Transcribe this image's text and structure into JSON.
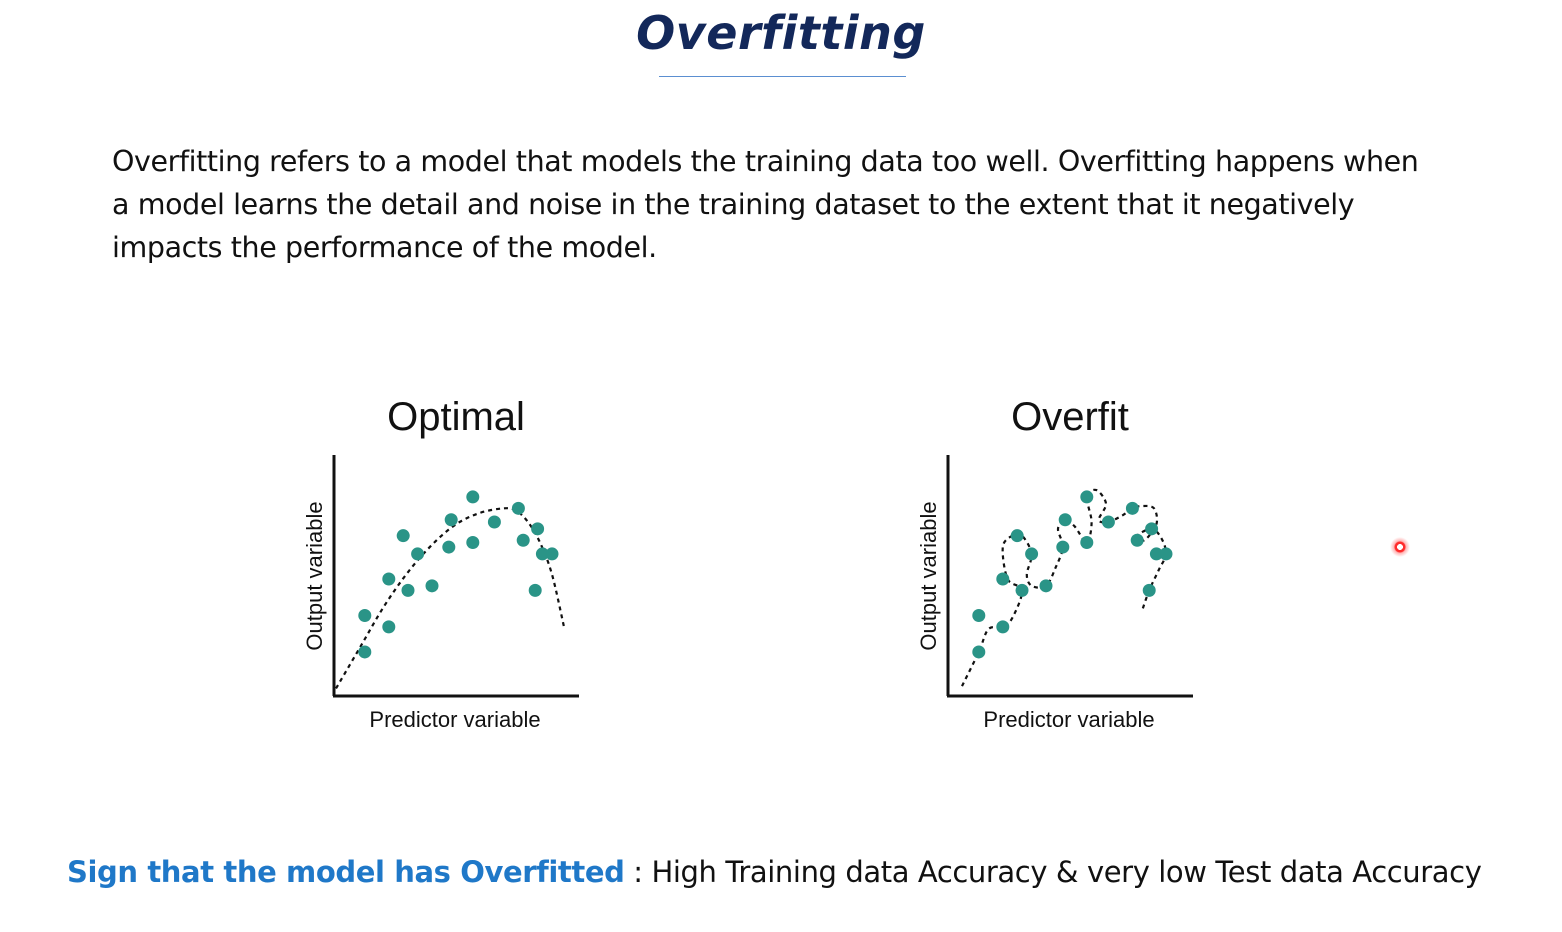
{
  "slide": {
    "title": "Overfitting",
    "body": "Overfitting refers to a model that models the training data too well. Overfitting happens when a model learns the detail and noise in the training dataset to the extent that it negatively impacts the performance of the model.",
    "footer_highlight": "Sign that the model has Overfitted",
    "footer_rest": " : High Training data Accuracy & very low Test data Accuracy"
  },
  "colors": {
    "title": "#13285a",
    "highlight": "#1f78c8",
    "point": "#2a9487",
    "pointer": "#ff2a2a"
  },
  "chart_data": [
    {
      "type": "scatter",
      "title": "Optimal",
      "xlabel": "Predictor variable",
      "ylabel": "Output variable",
      "xlim": [
        0,
        10
      ],
      "ylim": [
        0,
        10
      ],
      "grid": false,
      "x": [
        1.2,
        1.2,
        2.2,
        2.2,
        2.8,
        3.0,
        3.4,
        4.0,
        4.7,
        4.8,
        5.7,
        5.7,
        6.6,
        7.6,
        7.8,
        8.4,
        8.3,
        8.6,
        9.0
      ],
      "y": [
        1.8,
        3.4,
        2.9,
        5.0,
        6.9,
        4.5,
        6.1,
        4.7,
        6.4,
        7.6,
        8.6,
        6.6,
        7.5,
        8.1,
        6.7,
        7.2,
        4.5,
        6.1,
        6.1
      ],
      "fit": {
        "style": "dashed",
        "x": [
          0,
          1,
          2,
          3,
          4,
          5,
          6,
          7,
          7.5,
          8,
          8.5,
          9,
          9.5
        ],
        "y": [
          0.2,
          2.0,
          3.8,
          5.3,
          6.5,
          7.4,
          7.9,
          8.1,
          8.0,
          7.5,
          6.6,
          5.2,
          2.9
        ]
      }
    },
    {
      "type": "scatter",
      "title": "Overfit",
      "xlabel": "Predictor variable",
      "ylabel": "Output variable",
      "xlim": [
        0,
        10
      ],
      "ylim": [
        0,
        10
      ],
      "grid": false,
      "x": [
        1.2,
        1.2,
        2.2,
        2.2,
        2.8,
        3.0,
        3.4,
        4.0,
        4.7,
        4.8,
        5.7,
        5.7,
        6.6,
        7.6,
        7.8,
        8.4,
        8.3,
        8.6,
        9.0
      ],
      "y": [
        1.8,
        3.4,
        2.9,
        5.0,
        6.9,
        4.5,
        6.1,
        4.7,
        6.4,
        7.6,
        8.6,
        6.6,
        7.5,
        8.1,
        6.7,
        7.2,
        4.5,
        6.1,
        6.1
      ],
      "fit": {
        "style": "dashed",
        "x": [
          0.5,
          1.2,
          1.6,
          2.2,
          2.6,
          3.0,
          2.4,
          2.2,
          2.6,
          3.0,
          3.4,
          3.2,
          3.4,
          4.0,
          4.4,
          4.7,
          4.5,
          4.8,
          5.2,
          5.7,
          5.9,
          5.7,
          6.1,
          6.5,
          6.2,
          6.6,
          7.2,
          7.6,
          8.0,
          8.5,
          8.6,
          8.1,
          7.8,
          8.4,
          8.8,
          9.0,
          8.7,
          8.3,
          8.0
        ],
        "y": [
          0.3,
          1.8,
          2.8,
          2.9,
          3.3,
          4.5,
          5.0,
          6.4,
          6.9,
          6.9,
          6.1,
          5.2,
          4.7,
          4.7,
          5.5,
          6.4,
          7.2,
          7.6,
          7.3,
          6.6,
          7.5,
          8.6,
          8.9,
          8.3,
          7.6,
          7.5,
          7.8,
          8.1,
          8.2,
          8.1,
          7.4,
          6.7,
          6.9,
          7.2,
          6.8,
          6.1,
          5.4,
          4.5,
          3.6
        ]
      }
    }
  ]
}
